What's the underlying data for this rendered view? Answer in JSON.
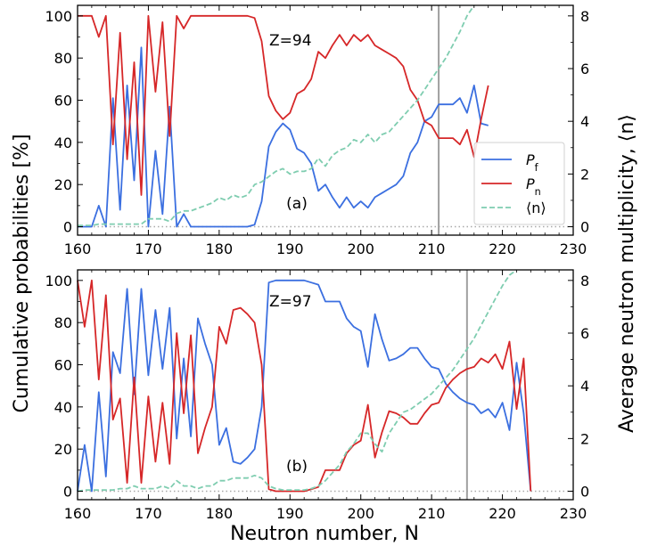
{
  "figure": {
    "ylabel_left": "Cumulative probabilities [%]",
    "ylabel_right": "Average neutron multiplicity, ⟨n⟩",
    "xlabel": "Neutron number, N"
  },
  "chart_data": [
    {
      "type": "line",
      "panel_label": "(a)",
      "annotation": "Z=94",
      "xlim": [
        160,
        230
      ],
      "ylim_left": [
        -4,
        105
      ],
      "ylim_right": [
        -0.32,
        8.4
      ],
      "xticks": [
        "160",
        "170",
        "180",
        "190",
        "200",
        "210",
        "220",
        "230"
      ],
      "yticks_left": [
        "0",
        "20",
        "40",
        "60",
        "80",
        "100"
      ],
      "yticks_right": [
        "0",
        "2",
        "4",
        "6",
        "8"
      ],
      "vline_x": 211,
      "legend": {
        "position": "center-right",
        "entries": [
          "P_f",
          "P_n",
          "⟨n⟩"
        ]
      },
      "series": [
        {
          "name": "P_f",
          "axis": "left",
          "color": "#3b6fe0",
          "style": "solid",
          "x": [
            160,
            161,
            162,
            163,
            164,
            165,
            166,
            167,
            168,
            169,
            170,
            171,
            172,
            173,
            174,
            175,
            176,
            177,
            178,
            179,
            180,
            181,
            182,
            183,
            184,
            185,
            186,
            187,
            188,
            189,
            190,
            191,
            192,
            193,
            194,
            195,
            196,
            197,
            198,
            199,
            200,
            201,
            202,
            203,
            204,
            205,
            206,
            207,
            208,
            209,
            210,
            211,
            212,
            213,
            214,
            215,
            216,
            217,
            218
          ],
          "y": [
            0,
            0,
            0,
            10,
            0,
            61,
            8,
            67,
            22,
            85,
            0,
            36,
            6,
            57,
            0,
            6,
            0,
            0,
            0,
            0,
            0,
            0,
            0,
            0,
            0,
            1,
            12,
            38,
            45,
            49,
            46,
            37,
            35,
            30,
            17,
            20,
            14,
            9,
            14,
            9,
            12,
            9,
            14,
            16,
            18,
            20,
            24,
            35,
            40,
            50,
            52,
            58,
            58,
            58,
            61,
            54,
            67,
            49,
            48
          ]
        },
        {
          "name": "P_n",
          "axis": "left",
          "color": "#d62728",
          "style": "solid",
          "x": [
            160,
            161,
            162,
            163,
            164,
            165,
            166,
            167,
            168,
            169,
            170,
            171,
            172,
            173,
            174,
            175,
            176,
            177,
            178,
            179,
            180,
            181,
            182,
            183,
            184,
            185,
            186,
            187,
            188,
            189,
            190,
            191,
            192,
            193,
            194,
            195,
            196,
            197,
            198,
            199,
            200,
            201,
            202,
            203,
            204,
            205,
            206,
            207,
            208,
            209,
            210,
            211,
            212,
            213,
            214,
            215,
            216,
            217,
            218
          ],
          "y": [
            100,
            100,
            100,
            90,
            100,
            39,
            92,
            32,
            78,
            15,
            100,
            64,
            97,
            43,
            100,
            94,
            100,
            100,
            100,
            100,
            100,
            100,
            100,
            100,
            100,
            99,
            88,
            62,
            55,
            51,
            54,
            63,
            65,
            70,
            83,
            80,
            86,
            91,
            86,
            91,
            88,
            91,
            86,
            84,
            82,
            80,
            76,
            65,
            60,
            50,
            48,
            42,
            42,
            42,
            39,
            46,
            33,
            51,
            67
          ]
        },
        {
          "name": "⟨n⟩",
          "axis": "right",
          "color": "#7fcdb0",
          "style": "dashed",
          "x": [
            160,
            161,
            162,
            163,
            164,
            165,
            166,
            167,
            168,
            169,
            170,
            171,
            172,
            173,
            174,
            175,
            176,
            177,
            178,
            179,
            180,
            181,
            182,
            183,
            184,
            185,
            186,
            187,
            188,
            189,
            190,
            191,
            192,
            193,
            194,
            195,
            196,
            197,
            198,
            199,
            200,
            201,
            202,
            203,
            204,
            205,
            206,
            207,
            208,
            209,
            210,
            211,
            212,
            213,
            214,
            215,
            216
          ],
          "y": [
            0.05,
            0.05,
            0.05,
            0.1,
            0.1,
            0.1,
            0.1,
            0.1,
            0.1,
            0.1,
            0.3,
            0.3,
            0.3,
            0.2,
            0.5,
            0.6,
            0.6,
            0.7,
            0.8,
            0.9,
            1.1,
            1.0,
            1.2,
            1.1,
            1.2,
            1.6,
            1.7,
            1.9,
            2.1,
            2.2,
            2.0,
            2.1,
            2.1,
            2.2,
            2.6,
            2.3,
            2.7,
            2.9,
            3.0,
            3.3,
            3.2,
            3.5,
            3.2,
            3.5,
            3.6,
            3.9,
            4.2,
            4.5,
            4.8,
            5.2,
            5.6,
            6.0,
            6.4,
            6.9,
            7.4,
            8.0,
            8.5
          ]
        }
      ]
    },
    {
      "type": "line",
      "panel_label": "(b)",
      "annotation": "Z=97",
      "xlim": [
        160,
        230
      ],
      "ylim_left": [
        -4,
        105
      ],
      "ylim_right": [
        -0.32,
        8.4
      ],
      "xticks": [
        "160",
        "170",
        "180",
        "190",
        "200",
        "210",
        "220",
        "230"
      ],
      "yticks_left": [
        "0",
        "20",
        "40",
        "60",
        "80",
        "100"
      ],
      "yticks_right": [
        "0",
        "2",
        "4",
        "6",
        "8"
      ],
      "vline_x": 215,
      "series": [
        {
          "name": "P_f",
          "axis": "left",
          "color": "#3b6fe0",
          "style": "solid",
          "x": [
            160,
            161,
            162,
            163,
            164,
            165,
            166,
            167,
            168,
            169,
            170,
            171,
            172,
            173,
            174,
            175,
            176,
            177,
            178,
            179,
            180,
            181,
            182,
            183,
            184,
            185,
            186,
            187,
            188,
            189,
            190,
            191,
            192,
            193,
            194,
            195,
            196,
            197,
            198,
            199,
            200,
            201,
            202,
            203,
            204,
            205,
            206,
            207,
            208,
            209,
            210,
            211,
            212,
            213,
            214,
            215,
            216,
            217,
            218,
            219,
            220,
            221,
            222,
            223,
            224
          ],
          "y": [
            0,
            22,
            0,
            47,
            7,
            66,
            56,
            96,
            46,
            96,
            55,
            86,
            58,
            87,
            25,
            63,
            26,
            82,
            70,
            60,
            22,
            30,
            14,
            13,
            16,
            20,
            40,
            99,
            100,
            100,
            100,
            100,
            100,
            99,
            98,
            90,
            90,
            90,
            82,
            78,
            76,
            59,
            84,
            72,
            62,
            63,
            65,
            68,
            68,
            63,
            59,
            58,
            51,
            47,
            44,
            42,
            41,
            37,
            39,
            35,
            42,
            29,
            61,
            37,
            0
          ]
        },
        {
          "name": "P_n",
          "axis": "left",
          "color": "#d62728",
          "style": "solid",
          "x": [
            160,
            161,
            162,
            163,
            164,
            165,
            166,
            167,
            168,
            169,
            170,
            171,
            172,
            173,
            174,
            175,
            176,
            177,
            178,
            179,
            180,
            181,
            182,
            183,
            184,
            185,
            186,
            187,
            188,
            189,
            190,
            191,
            192,
            193,
            194,
            195,
            196,
            197,
            198,
            199,
            200,
            201,
            202,
            203,
            204,
            205,
            206,
            207,
            208,
            209,
            210,
            211,
            212,
            213,
            214,
            215,
            216,
            217,
            218,
            219,
            220,
            221,
            222,
            223,
            224
          ],
          "y": [
            100,
            78,
            100,
            53,
            93,
            34,
            44,
            4,
            54,
            4,
            45,
            14,
            42,
            13,
            75,
            37,
            74,
            18,
            30,
            40,
            78,
            70,
            86,
            87,
            84,
            80,
            60,
            1,
            0,
            0,
            0,
            0,
            0,
            1,
            2,
            10,
            10,
            10,
            18,
            22,
            24,
            41,
            16,
            28,
            38,
            37,
            35,
            32,
            32,
            37,
            41,
            42,
            49,
            53,
            56,
            58,
            59,
            63,
            61,
            65,
            58,
            71,
            39,
            63,
            0
          ]
        },
        {
          "name": "⟨n⟩",
          "axis": "right",
          "color": "#7fcdb0",
          "style": "dashed",
          "x": [
            160,
            161,
            162,
            163,
            164,
            165,
            166,
            167,
            168,
            169,
            170,
            171,
            172,
            173,
            174,
            175,
            176,
            177,
            178,
            179,
            180,
            181,
            182,
            183,
            184,
            185,
            186,
            187,
            188,
            189,
            190,
            191,
            192,
            193,
            194,
            195,
            196,
            197,
            198,
            199,
            200,
            201,
            202,
            203,
            204,
            205,
            206,
            207,
            208,
            209,
            210,
            211,
            212,
            213,
            214,
            215,
            216,
            217,
            218,
            219,
            220,
            221,
            222
          ],
          "y": [
            0.0,
            0.05,
            0.05,
            0.05,
            0.05,
            0.05,
            0.1,
            0.1,
            0.2,
            0.1,
            0.1,
            0.1,
            0.2,
            0.1,
            0.4,
            0.2,
            0.2,
            0.1,
            0.2,
            0.2,
            0.4,
            0.4,
            0.5,
            0.5,
            0.5,
            0.6,
            0.5,
            0.2,
            0.1,
            0.05,
            0.05,
            0.05,
            0.05,
            0.1,
            0.2,
            0.4,
            0.7,
            1.0,
            1.5,
            1.8,
            2.2,
            2.2,
            1.8,
            1.5,
            2.2,
            2.6,
            3.0,
            3.1,
            3.3,
            3.5,
            3.7,
            4.0,
            4.3,
            4.6,
            5.0,
            5.4,
            5.8,
            6.3,
            6.8,
            7.3,
            7.8,
            8.2,
            8.5
          ]
        }
      ]
    }
  ]
}
